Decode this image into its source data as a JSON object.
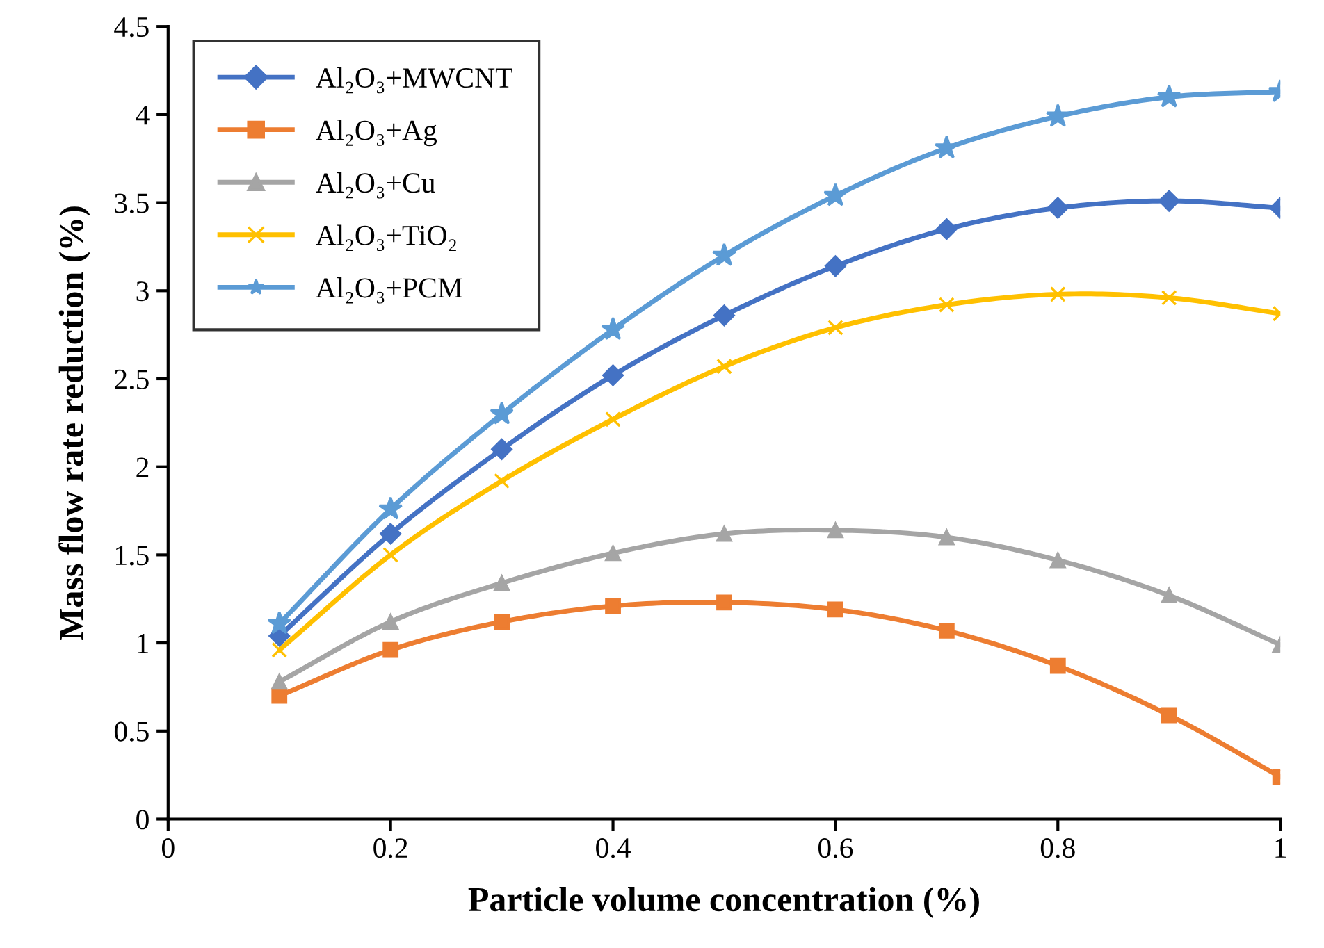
{
  "chart_data": {
    "type": "line",
    "xlabel": "Particle volume concentration (%)",
    "ylabel": "Mass flow rate reduction (%)",
    "x": [
      0.1,
      0.2,
      0.3,
      0.4,
      0.5,
      0.6,
      0.7,
      0.8,
      0.9,
      1.0
    ],
    "xlim": [
      0,
      1
    ],
    "xticks": [
      0,
      0.2,
      0.4,
      0.6,
      0.8,
      1
    ],
    "ylim": [
      0,
      4.5
    ],
    "yticks": [
      0,
      0.5,
      1,
      1.5,
      2,
      2.5,
      3,
      3.5,
      4,
      4.5
    ],
    "grid": false,
    "legend": "top left",
    "line_style": "solid",
    "series": [
      {
        "name": "Al₂O₃+MWCNT",
        "color": "#4472c4",
        "marker": "diamond",
        "values": [
          1.04,
          1.62,
          2.1,
          2.52,
          2.86,
          3.14,
          3.35,
          3.47,
          3.51,
          3.47
        ]
      },
      {
        "name": "Al₂O₃+Ag",
        "color": "#ed7d31",
        "marker": "square",
        "values": [
          0.7,
          0.96,
          1.12,
          1.21,
          1.23,
          1.19,
          1.07,
          0.87,
          0.59,
          0.24
        ]
      },
      {
        "name": "Al₂O₃+Cu",
        "color": "#a5a5a5",
        "marker": "triangle",
        "values": [
          0.78,
          1.12,
          1.34,
          1.51,
          1.62,
          1.64,
          1.6,
          1.47,
          1.27,
          0.99
        ]
      },
      {
        "name": "Al₂O₃+TiO₂",
        "color": "#ffc000",
        "marker": "cross",
        "values": [
          0.96,
          1.5,
          1.92,
          2.27,
          2.57,
          2.79,
          2.92,
          2.98,
          2.96,
          2.87
        ]
      },
      {
        "name": "Al₂O₃+PCM",
        "color": "#5b9bd5",
        "marker": "star",
        "values": [
          1.11,
          1.76,
          2.3,
          2.78,
          3.2,
          3.54,
          3.81,
          3.99,
          4.1,
          4.13
        ]
      }
    ]
  }
}
